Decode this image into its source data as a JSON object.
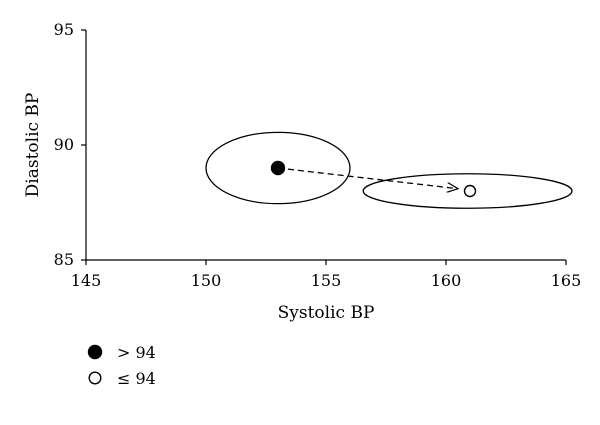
{
  "chart_data": {
    "type": "scatter",
    "title": "",
    "xlabel": "Systolic BP",
    "ylabel": "Diastolic BP",
    "xlim": [
      145,
      165
    ],
    "ylim": [
      85,
      95
    ],
    "xticks": [
      145,
      150,
      155,
      160,
      165
    ],
    "yticks": [
      85,
      90,
      95
    ],
    "grid": false,
    "legend_position": "bottom-left",
    "series": [
      {
        "name": "> 94",
        "marker": "filled-circle",
        "color": "#000000",
        "x": [
          153
        ],
        "y": [
          89
        ],
        "ellipse": {
          "cx": 153,
          "cy": 89,
          "rx": 3.0,
          "ry": 1.55
        }
      },
      {
        "name": "≤ 94",
        "marker": "open-circle",
        "color": "#000000",
        "x": [
          161
        ],
        "y": [
          88
        ],
        "ellipse": {
          "cx": 160.9,
          "cy": 88,
          "rx": 4.35,
          "ry": 0.75
        }
      }
    ],
    "annotations": [
      {
        "type": "dashed-arrow",
        "from": [
          153,
          89
        ],
        "to": [
          160.5,
          88.1
        ]
      }
    ]
  }
}
